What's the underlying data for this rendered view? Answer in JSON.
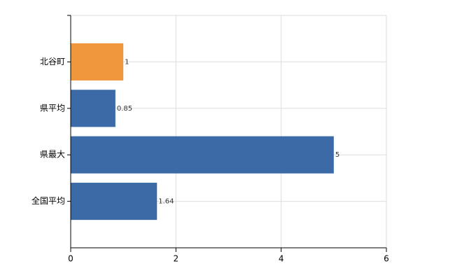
{
  "chart_data": {
    "type": "hbar",
    "categories": [
      "北谷町",
      "県平均",
      "県最大",
      "全国平均"
    ],
    "values": [
      1,
      0.85,
      5,
      1.64
    ],
    "colors": [
      "#f0963c",
      "#3b6aa6",
      "#3b6aa6",
      "#3b6aa6"
    ],
    "xlim": [
      0,
      6
    ],
    "xticks": [
      0,
      2,
      4,
      6
    ],
    "grid": true
  }
}
